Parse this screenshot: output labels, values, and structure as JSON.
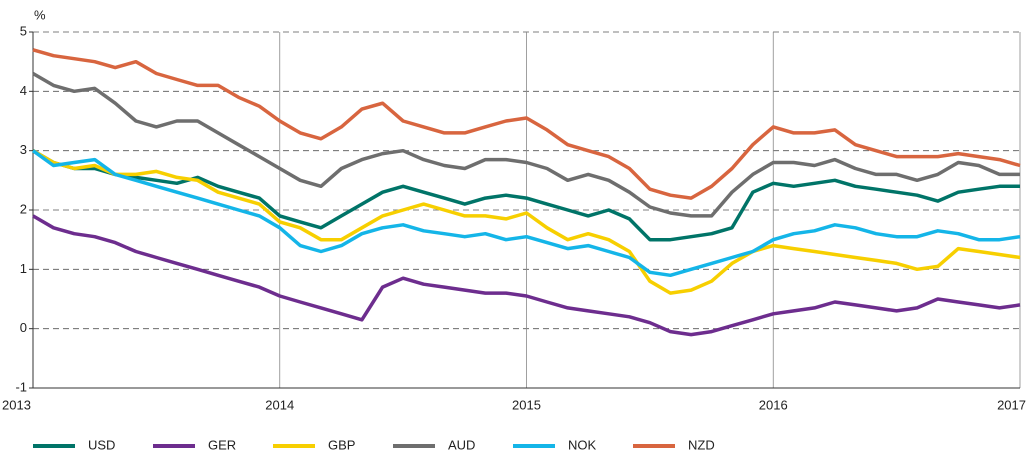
{
  "chart_data": {
    "type": "line",
    "y_label": "%",
    "x": [
      2013,
      2013.083,
      2013.167,
      2013.25,
      2013.333,
      2013.417,
      2013.5,
      2013.583,
      2013.667,
      2013.75,
      2013.833,
      2013.917,
      2014,
      2014.083,
      2014.167,
      2014.25,
      2014.333,
      2014.417,
      2014.5,
      2014.583,
      2014.667,
      2014.75,
      2014.833,
      2014.917,
      2015,
      2015.083,
      2015.167,
      2015.25,
      2015.333,
      2015.417,
      2015.5,
      2015.583,
      2015.667,
      2015.75,
      2015.833,
      2015.917,
      2016,
      2016.083,
      2016.167,
      2016.25,
      2016.333,
      2016.417,
      2016.5,
      2016.583,
      2016.667,
      2016.75,
      2016.833,
      2016.917,
      2017
    ],
    "xlim": [
      2013,
      2017
    ],
    "xticks": [
      2013,
      2014,
      2015,
      2016,
      2017
    ],
    "ylim": [
      -1,
      5
    ],
    "yticks": [
      -1,
      0,
      1,
      2,
      3,
      4,
      5
    ],
    "grid": true,
    "series": [
      {
        "name": "USD",
        "color": "#007468",
        "values": [
          3.0,
          2.8,
          2.7,
          2.7,
          2.6,
          2.55,
          2.5,
          2.45,
          2.55,
          2.4,
          2.3,
          2.2,
          1.9,
          1.8,
          1.7,
          1.9,
          2.1,
          2.3,
          2.4,
          2.3,
          2.2,
          2.1,
          2.2,
          2.25,
          2.2,
          2.1,
          2.0,
          1.9,
          2.0,
          1.85,
          1.5,
          1.5,
          1.55,
          1.6,
          1.7,
          2.3,
          2.45,
          2.4,
          2.45,
          2.5,
          2.4,
          2.35,
          2.3,
          2.25,
          2.15,
          2.3,
          2.35,
          2.4,
          2.4
        ]
      },
      {
        "name": "GER",
        "color": "#6d2d8e",
        "values": [
          1.9,
          1.7,
          1.6,
          1.55,
          1.45,
          1.3,
          1.2,
          1.1,
          1.0,
          0.9,
          0.8,
          0.7,
          0.55,
          0.45,
          0.35,
          0.25,
          0.15,
          0.7,
          0.85,
          0.75,
          0.7,
          0.65,
          0.6,
          0.6,
          0.55,
          0.45,
          0.35,
          0.3,
          0.25,
          0.2,
          0.1,
          -0.05,
          -0.1,
          -0.05,
          0.05,
          0.15,
          0.25,
          0.3,
          0.35,
          0.45,
          0.4,
          0.35,
          0.3,
          0.35,
          0.5,
          0.45,
          0.4,
          0.35,
          0.4
        ]
      },
      {
        "name": "GBP",
        "color": "#f7cf00",
        "values": [
          3.0,
          2.8,
          2.7,
          2.75,
          2.6,
          2.6,
          2.65,
          2.55,
          2.5,
          2.3,
          2.2,
          2.1,
          1.8,
          1.7,
          1.5,
          1.5,
          1.7,
          1.9,
          2.0,
          2.1,
          2.0,
          1.9,
          1.9,
          1.85,
          1.95,
          1.7,
          1.5,
          1.6,
          1.5,
          1.3,
          0.8,
          0.6,
          0.65,
          0.8,
          1.1,
          1.3,
          1.4,
          1.35,
          1.3,
          1.25,
          1.2,
          1.15,
          1.1,
          1.0,
          1.05,
          1.35,
          1.3,
          1.25,
          1.2
        ]
      },
      {
        "name": "AUD",
        "color": "#6e6e6e",
        "values": [
          4.3,
          4.1,
          4.0,
          4.05,
          3.8,
          3.5,
          3.4,
          3.5,
          3.5,
          3.3,
          3.1,
          2.9,
          2.7,
          2.5,
          2.4,
          2.7,
          2.85,
          2.95,
          3.0,
          2.85,
          2.75,
          2.7,
          2.85,
          2.85,
          2.8,
          2.7,
          2.5,
          2.6,
          2.5,
          2.3,
          2.05,
          1.95,
          1.9,
          1.9,
          2.3,
          2.6,
          2.8,
          2.8,
          2.75,
          2.85,
          2.7,
          2.6,
          2.6,
          2.5,
          2.6,
          2.8,
          2.75,
          2.6,
          2.6
        ]
      },
      {
        "name": "NOK",
        "color": "#14b5e8",
        "values": [
          3.0,
          2.75,
          2.8,
          2.85,
          2.6,
          2.5,
          2.4,
          2.3,
          2.2,
          2.1,
          2.0,
          1.9,
          1.7,
          1.4,
          1.3,
          1.4,
          1.6,
          1.7,
          1.75,
          1.65,
          1.6,
          1.55,
          1.6,
          1.5,
          1.55,
          1.45,
          1.35,
          1.4,
          1.3,
          1.2,
          0.95,
          0.9,
          1.0,
          1.1,
          1.2,
          1.3,
          1.5,
          1.6,
          1.65,
          1.75,
          1.7,
          1.6,
          1.55,
          1.55,
          1.65,
          1.6,
          1.5,
          1.5,
          1.55
        ]
      },
      {
        "name": "NZD",
        "color": "#d8653f",
        "values": [
          4.7,
          4.6,
          4.55,
          4.5,
          4.4,
          4.5,
          4.3,
          4.2,
          4.1,
          4.1,
          3.9,
          3.75,
          3.5,
          3.3,
          3.2,
          3.4,
          3.7,
          3.8,
          3.5,
          3.4,
          3.3,
          3.3,
          3.4,
          3.5,
          3.55,
          3.35,
          3.1,
          3.0,
          2.9,
          2.7,
          2.35,
          2.25,
          2.2,
          2.4,
          2.7,
          3.1,
          3.4,
          3.3,
          3.3,
          3.35,
          3.1,
          3.0,
          2.9,
          2.9,
          2.9,
          2.95,
          2.9,
          2.85,
          2.75
        ]
      }
    ]
  }
}
